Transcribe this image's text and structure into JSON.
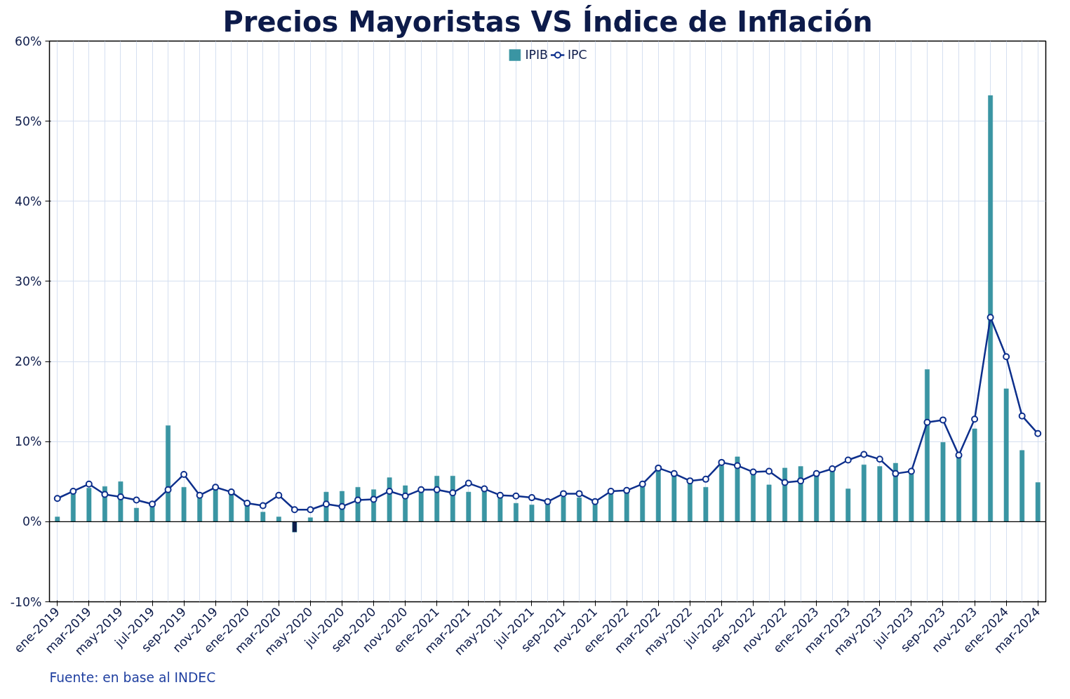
{
  "chart_data": {
    "type": "bar",
    "title": "Precios Mayoristas VS Índice de Inflación",
    "categories": [
      "ene-2019",
      null,
      "mar-2019",
      null,
      "may-2019",
      null,
      "jul-2019",
      null,
      "sep-2019",
      null,
      "nov-2019",
      null,
      "ene-2020",
      null,
      "mar-2020",
      null,
      "may-2020",
      null,
      "jul-2020",
      null,
      "sep-2020",
      null,
      "nov-2020",
      null,
      "ene-2021",
      null,
      "mar-2021",
      null,
      "may-2021",
      null,
      "jul-2021",
      null,
      "sep-2021",
      null,
      "nov-2021",
      null,
      "ene-2022",
      null,
      "mar-2022",
      null,
      "may-2022",
      null,
      "jul-2022",
      null,
      "sep-2022",
      null,
      "nov-2022",
      null,
      "ene-2023",
      null,
      "mar-2023",
      null,
      "may-2023",
      null,
      "jul-2023",
      null,
      "sep-2023",
      null,
      "nov-2023",
      null,
      "ene-2024",
      null,
      "mar-2024"
    ],
    "series": [
      {
        "name": "IPIB",
        "color": "#3a95a3",
        "colors": [
          "#3a95a3",
          "#3a95a3",
          "#3a95a3",
          "#3a95a3",
          "#3a95a3",
          "#3a95a3",
          "#3a95a3",
          "#3a95a3",
          "#3a95a3",
          "#3a95a3",
          "#3a95a3",
          "#3a95a3",
          "#3a95a3",
          "#3a95a3",
          "#3a95a3",
          "#0d1b4a",
          "#3a95a3",
          "#3a95a3",
          "#3a95a3",
          "#3a95a3",
          "#3a95a3",
          "#3a95a3",
          "#3a95a3",
          "#3a95a3",
          "#3a95a3",
          "#3a95a3",
          "#3a95a3",
          "#3a95a3",
          "#3a95a3",
          "#3a95a3",
          "#3a95a3",
          "#3a95a3",
          "#3a95a3",
          "#3a95a3",
          "#3a95a3",
          "#3a95a3",
          "#3a95a3",
          "#3a95a3",
          "#3a95a3",
          "#3a95a3",
          "#3a95a3",
          "#3a95a3",
          "#3a95a3",
          "#3a95a3",
          "#3a95a3",
          "#3a95a3",
          "#3a95a3",
          "#3a95a3",
          "#3a95a3",
          "#3a95a3",
          "#3a95a3",
          "#3a95a3",
          "#3a95a3",
          "#3a95a3",
          "#3a95a3",
          "#3a95a3",
          "#3a95a3",
          "#3a95a3",
          "#3a95a3",
          "#3a95a3",
          "#3a95a3",
          "#3a95a3",
          "#3a95a3"
        ],
        "values": [
          0.6,
          3.6,
          4.2,
          4.4,
          5.0,
          1.7,
          2.0,
          12.0,
          4.3,
          3.0,
          4.0,
          3.6,
          2.3,
          1.2,
          0.6,
          -1.3,
          0.5,
          3.7,
          3.8,
          4.3,
          4.0,
          5.5,
          4.5,
          4.0,
          5.7,
          5.7,
          3.7,
          4.1,
          3.3,
          2.3,
          2.1,
          2.5,
          3.1,
          3.0,
          2.3,
          3.6,
          3.8,
          4.6,
          6.5,
          5.8,
          4.9,
          4.3,
          7.0,
          8.1,
          5.9,
          4.6,
          6.7,
          6.9,
          5.7,
          6.5,
          4.1,
          7.1,
          6.9,
          7.3,
          6.0,
          19.0,
          9.9,
          8.0,
          11.6,
          53.2,
          16.6,
          8.9,
          4.9
        ]
      },
      {
        "name": "IPC",
        "type": "line",
        "color": "#0d2f8c",
        "marker": "circle",
        "values": [
          2.9,
          3.8,
          4.7,
          3.4,
          3.1,
          2.7,
          2.2,
          4.0,
          5.9,
          3.3,
          4.3,
          3.7,
          2.3,
          2.0,
          3.3,
          1.5,
          1.5,
          2.2,
          1.9,
          2.7,
          2.8,
          3.8,
          3.2,
          4.0,
          4.0,
          3.6,
          4.8,
          4.1,
          3.3,
          3.2,
          3.0,
          2.5,
          3.5,
          3.5,
          2.5,
          3.8,
          3.9,
          4.7,
          6.7,
          6.0,
          5.1,
          5.3,
          7.4,
          7.0,
          6.2,
          6.3,
          4.9,
          5.1,
          6.0,
          6.6,
          7.7,
          8.4,
          7.8,
          6.0,
          6.3,
          12.4,
          12.7,
          8.3,
          12.8,
          25.5,
          20.6,
          13.2,
          11.0
        ]
      }
    ],
    "ylim": [
      -10,
      60
    ],
    "yticks": [
      {
        "value": -10,
        "label": "-10%"
      },
      {
        "value": 0,
        "label": "0%"
      },
      {
        "value": 10,
        "label": "10%"
      },
      {
        "value": 20,
        "label": "20%"
      },
      {
        "value": 30,
        "label": "30%"
      },
      {
        "value": 40,
        "label": "40%"
      },
      {
        "value": 50,
        "label": "50%"
      },
      {
        "value": 60,
        "label": "60%"
      }
    ],
    "grid": true,
    "legend": "top",
    "annotations": [
      "Fuente: en base al INDEC"
    ]
  }
}
